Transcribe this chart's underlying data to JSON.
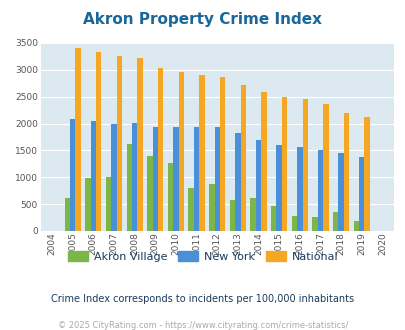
{
  "title": "Akron Property Crime Index",
  "years": [
    2004,
    2005,
    2006,
    2007,
    2008,
    2009,
    2010,
    2011,
    2012,
    2013,
    2014,
    2015,
    2016,
    2017,
    2018,
    2019,
    2020
  ],
  "akron_village": [
    0,
    620,
    980,
    1000,
    1610,
    1390,
    1270,
    800,
    880,
    570,
    610,
    470,
    280,
    260,
    350,
    190,
    0
  ],
  "new_york": [
    0,
    2090,
    2050,
    1990,
    2010,
    1940,
    1940,
    1930,
    1930,
    1820,
    1700,
    1600,
    1560,
    1510,
    1460,
    1370,
    0
  ],
  "national": [
    0,
    3410,
    3330,
    3250,
    3210,
    3040,
    2950,
    2910,
    2860,
    2720,
    2590,
    2490,
    2460,
    2370,
    2200,
    2120,
    0
  ],
  "akron_color": "#7ab648",
  "newyork_color": "#4a90d9",
  "national_color": "#f5a623",
  "plot_bg": "#dce9f0",
  "ylim": [
    0,
    3500
  ],
  "yticks": [
    0,
    500,
    1000,
    1500,
    2000,
    2500,
    3000,
    3500
  ],
  "title_color": "#1a6699",
  "subtitle_color": "#1a3a5c",
  "footer_color": "#aaaaaa",
  "footer_link_color": "#4a90d9",
  "subtitle": "Crime Index corresponds to incidents per 100,000 inhabitants",
  "footer": "© 2025 CityRating.com - https://www.cityrating.com/crime-statistics/"
}
